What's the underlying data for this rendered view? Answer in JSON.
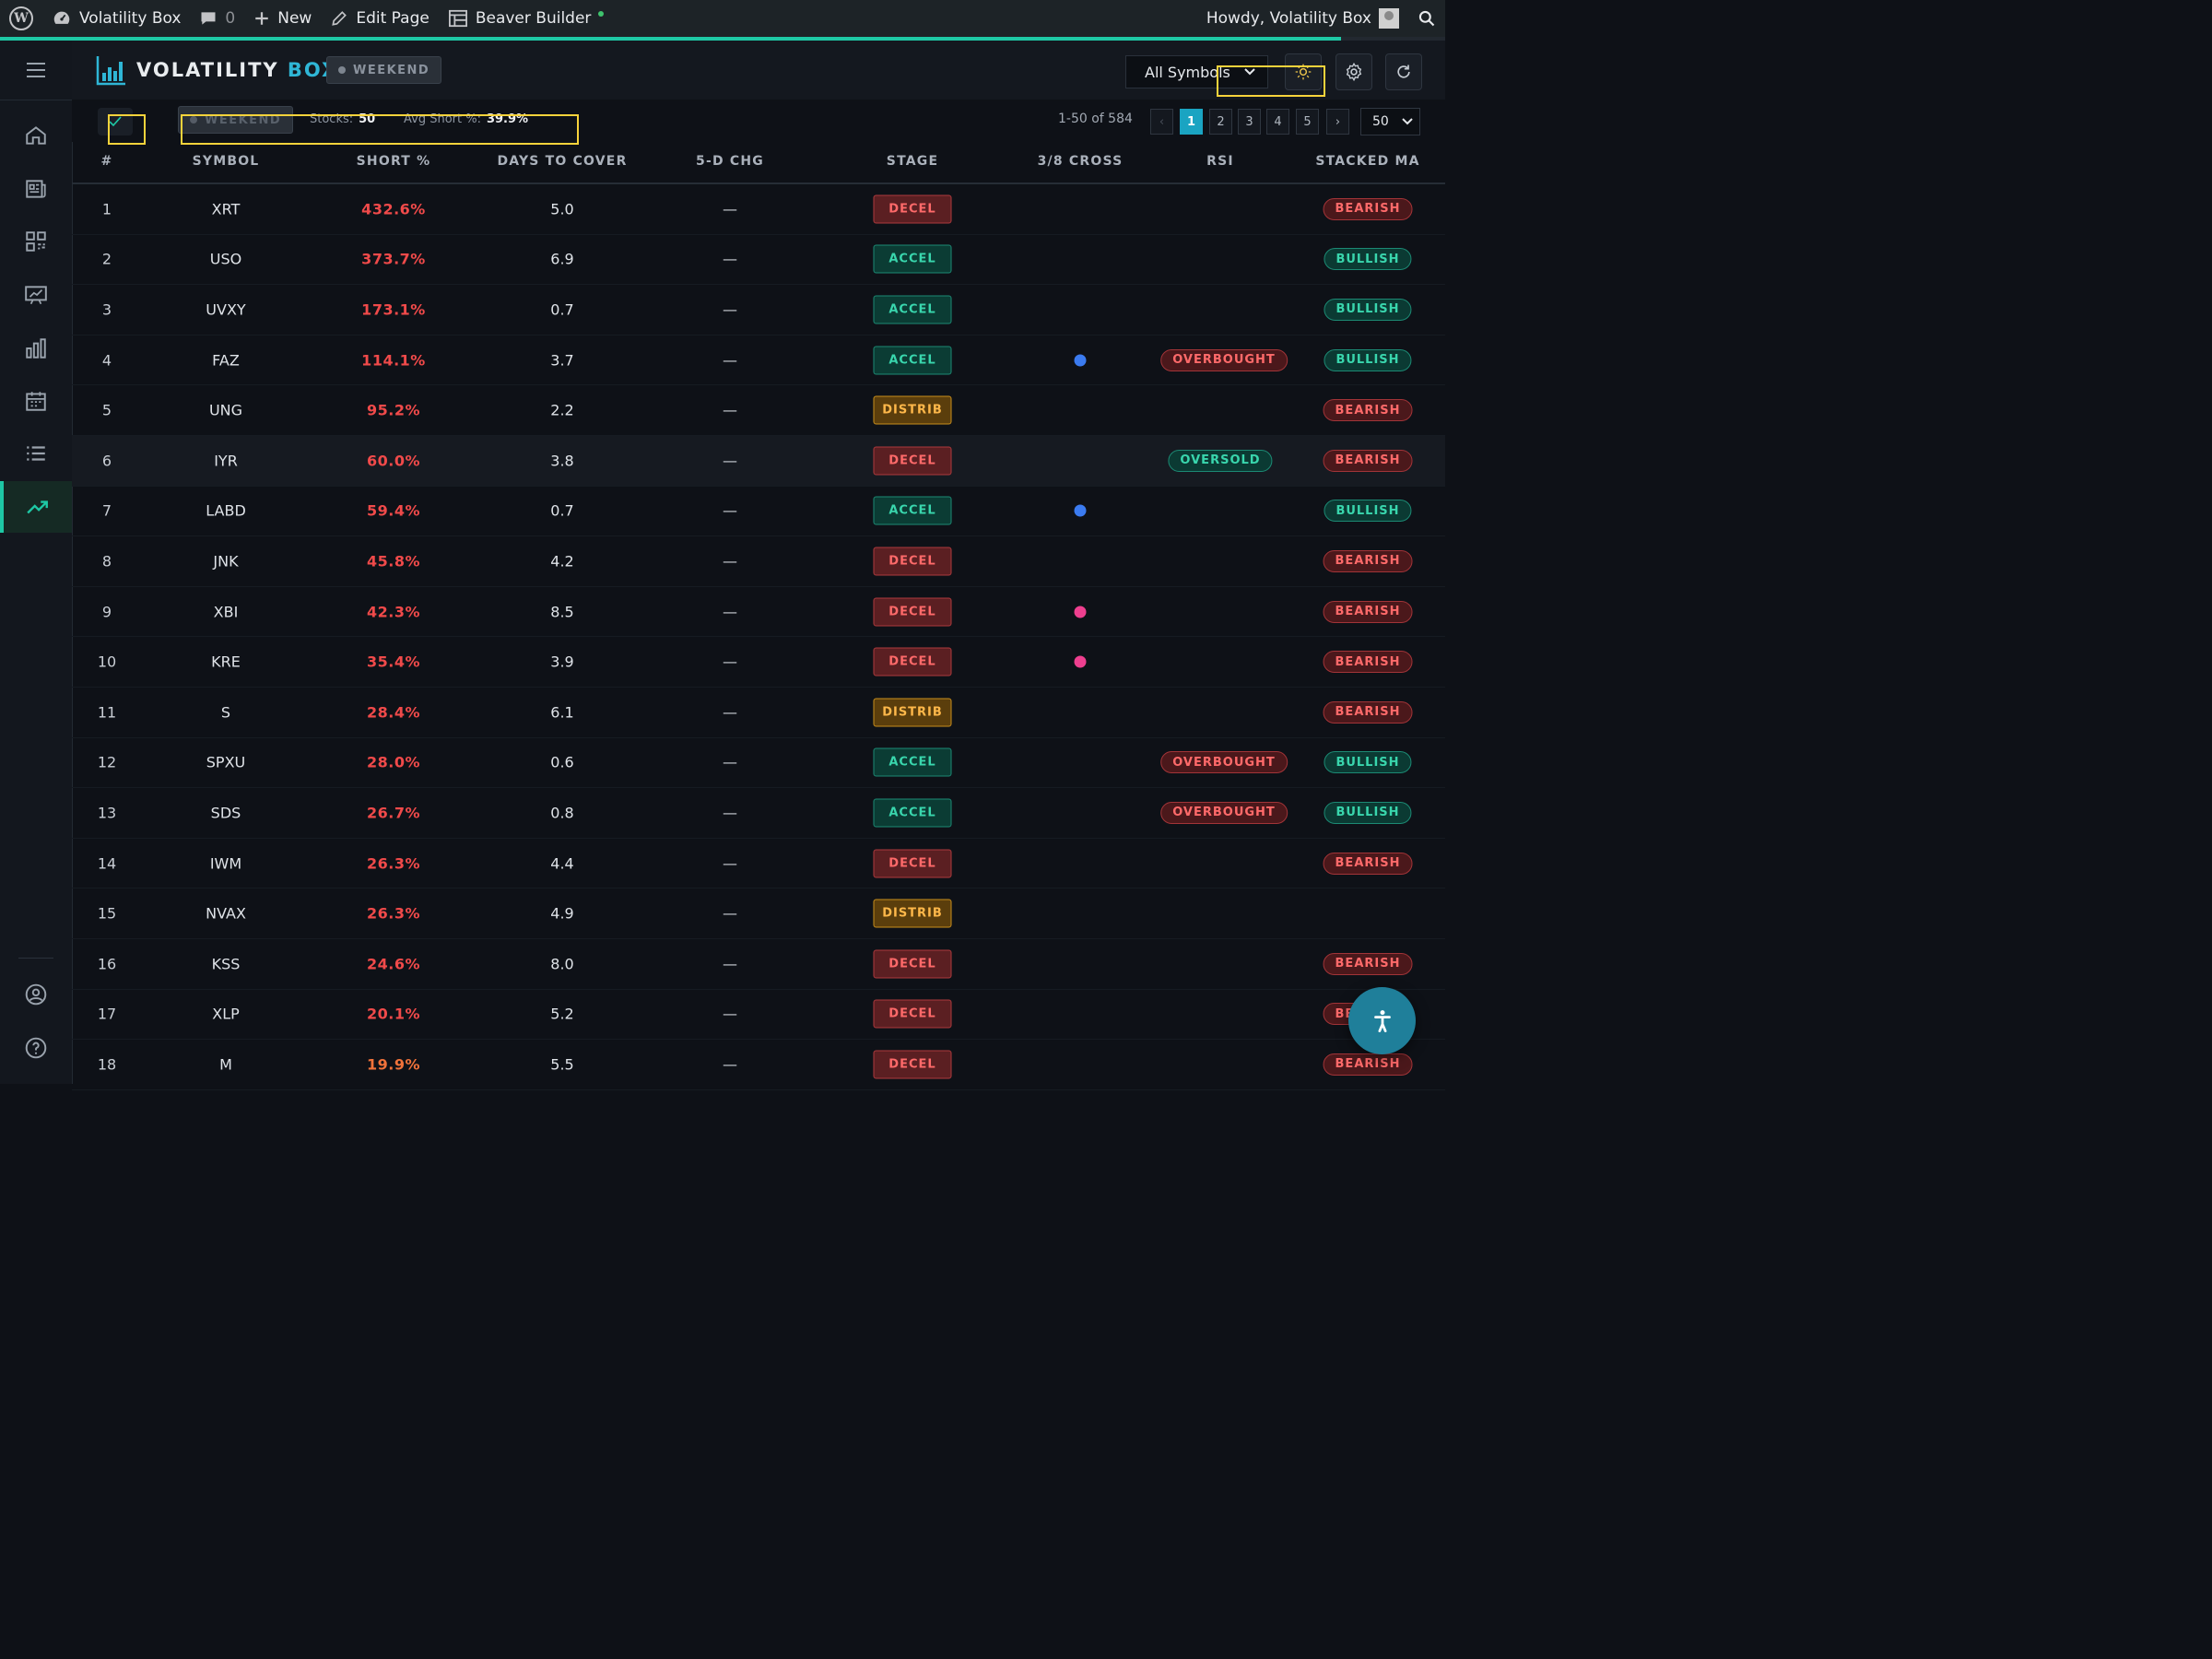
{
  "admin_bar": {
    "site_name": "Volatility Box",
    "comments_count": "0",
    "new_label": "New",
    "edit_label": "Edit Page",
    "builder_label": "Beaver Builder",
    "howdy": "Howdy, Volatility Box"
  },
  "header": {
    "brand_main": "VOLATILITY ",
    "brand_accent": "BOX",
    "weekend_label": "WEEKEND",
    "symbol_select": "All Symbols"
  },
  "toolbar": {
    "weekend_label": "WEEKEND",
    "stocks_label": "Stocks:",
    "stocks_value": "50",
    "avg_short_label": "Avg Short %:",
    "avg_short_value": "39.9%",
    "pager_info": "1-50 of 584",
    "pages": [
      "1",
      "2",
      "3",
      "4",
      "5"
    ],
    "prev": "‹",
    "next": "›",
    "per_page": "50"
  },
  "table": {
    "headers": [
      "#",
      "SYMBOL",
      "SHORT %",
      "DAYS TO COVER",
      "5-D CHG",
      "STAGE",
      "3/8 CROSS",
      "RSI",
      "STACKED MA"
    ],
    "rows": [
      {
        "n": "1",
        "sym": "XRT",
        "short": "432.6%",
        "dtc": "5.0",
        "chg": "—",
        "stage": "DECEL",
        "cross": "",
        "rsi": "",
        "ma": "BEARISH"
      },
      {
        "n": "2",
        "sym": "USO",
        "short": "373.7%",
        "dtc": "6.9",
        "chg": "—",
        "stage": "ACCEL",
        "cross": "",
        "rsi": "",
        "ma": "BULLISH"
      },
      {
        "n": "3",
        "sym": "UVXY",
        "short": "173.1%",
        "dtc": "0.7",
        "chg": "—",
        "stage": "ACCEL",
        "cross": "",
        "rsi": "",
        "ma": "BULLISH"
      },
      {
        "n": "4",
        "sym": "FAZ",
        "short": "114.1%",
        "dtc": "3.7",
        "chg": "—",
        "stage": "ACCEL",
        "cross": "blue",
        "rsi": "OVERBOUGHT",
        "ma": "BULLISH"
      },
      {
        "n": "5",
        "sym": "UNG",
        "short": "95.2%",
        "dtc": "2.2",
        "chg": "—",
        "stage": "DISTRIB",
        "cross": "",
        "rsi": "",
        "ma": "BEARISH"
      },
      {
        "n": "6",
        "sym": "IYR",
        "short": "60.0%",
        "dtc": "3.8",
        "chg": "—",
        "stage": "DECEL",
        "cross": "",
        "rsi": "OVERSOLD",
        "ma": "BEARISH"
      },
      {
        "n": "7",
        "sym": "LABD",
        "short": "59.4%",
        "dtc": "0.7",
        "chg": "—",
        "stage": "ACCEL",
        "cross": "blue",
        "rsi": "",
        "ma": "BULLISH"
      },
      {
        "n": "8",
        "sym": "JNK",
        "short": "45.8%",
        "dtc": "4.2",
        "chg": "—",
        "stage": "DECEL",
        "cross": "",
        "rsi": "",
        "ma": "BEARISH"
      },
      {
        "n": "9",
        "sym": "XBI",
        "short": "42.3%",
        "dtc": "8.5",
        "chg": "—",
        "stage": "DECEL",
        "cross": "pink",
        "rsi": "",
        "ma": "BEARISH"
      },
      {
        "n": "10",
        "sym": "KRE",
        "short": "35.4%",
        "dtc": "3.9",
        "chg": "—",
        "stage": "DECEL",
        "cross": "pink",
        "rsi": "",
        "ma": "BEARISH"
      },
      {
        "n": "11",
        "sym": "S",
        "short": "28.4%",
        "dtc": "6.1",
        "chg": "—",
        "stage": "DISTRIB",
        "cross": "",
        "rsi": "",
        "ma": "BEARISH"
      },
      {
        "n": "12",
        "sym": "SPXU",
        "short": "28.0%",
        "dtc": "0.6",
        "chg": "—",
        "stage": "ACCEL",
        "cross": "",
        "rsi": "OVERBOUGHT",
        "ma": "BULLISH"
      },
      {
        "n": "13",
        "sym": "SDS",
        "short": "26.7%",
        "dtc": "0.8",
        "chg": "—",
        "stage": "ACCEL",
        "cross": "",
        "rsi": "OVERBOUGHT",
        "ma": "BULLISH"
      },
      {
        "n": "14",
        "sym": "IWM",
        "short": "26.3%",
        "dtc": "4.4",
        "chg": "—",
        "stage": "DECEL",
        "cross": "",
        "rsi": "",
        "ma": "BEARISH"
      },
      {
        "n": "15",
        "sym": "NVAX",
        "short": "26.3%",
        "dtc": "4.9",
        "chg": "—",
        "stage": "DISTRIB",
        "cross": "",
        "rsi": "",
        "ma": ""
      },
      {
        "n": "16",
        "sym": "KSS",
        "short": "24.6%",
        "dtc": "8.0",
        "chg": "—",
        "stage": "DECEL",
        "cross": "",
        "rsi": "",
        "ma": "BEARISH"
      },
      {
        "n": "17",
        "sym": "XLP",
        "short": "20.1%",
        "dtc": "5.2",
        "chg": "—",
        "stage": "DECEL",
        "cross": "",
        "rsi": "",
        "ma": "BEARISH"
      },
      {
        "n": "18",
        "sym": "M",
        "short": "19.9%",
        "dtc": "5.5",
        "chg": "—",
        "stage": "DECEL",
        "cross": "",
        "rsi": "",
        "ma": "BEARISH"
      }
    ]
  },
  "icons": {
    "menu": "hamburger-icon",
    "nav": [
      "home-icon",
      "news-icon",
      "grid-icon",
      "presentation-chart-icon",
      "bar-chart-icon",
      "calendar-icon",
      "list-icon",
      "trending-up-icon",
      "user-icon",
      "help-icon"
    ],
    "header_buttons": [
      "theme-sun-icon",
      "settings-gear-icon",
      "refresh-icon"
    ],
    "fab": "accessibility-icon"
  },
  "colors": {
    "accent_teal": "#1ec8a5",
    "brand_blue": "#2fb6d6",
    "negative_red": "#f04a4a",
    "cross_blue": "#3b7bf0",
    "cross_pink": "#ee3f8f",
    "highlight_yellow": "#f7d33b"
  }
}
